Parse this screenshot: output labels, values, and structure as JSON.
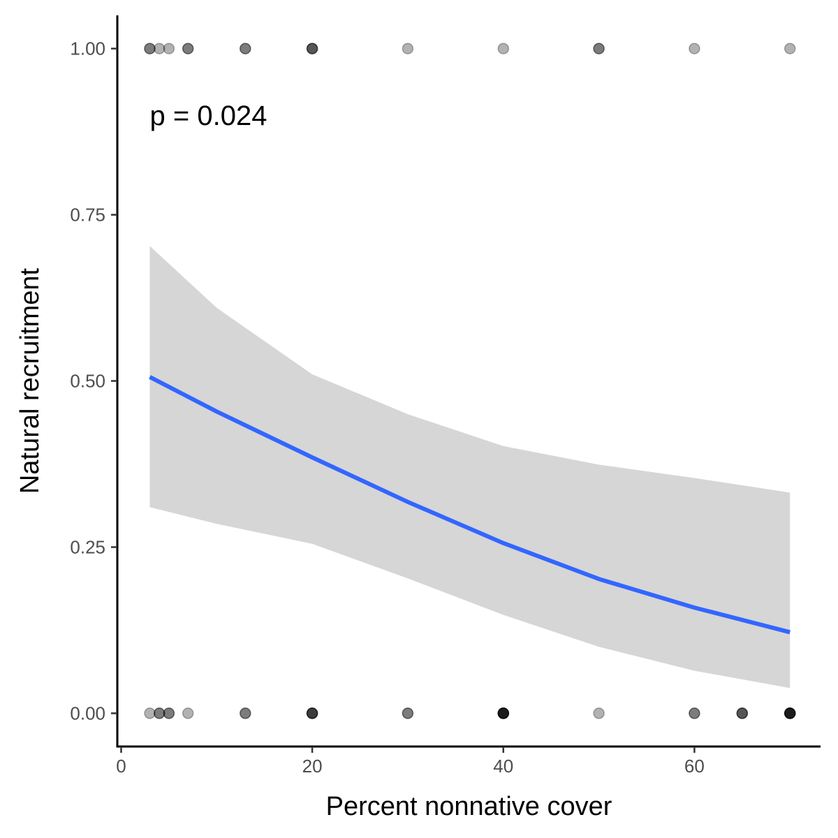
{
  "chart_data": {
    "type": "scatter",
    "xlabel": "Percent nonnative cover",
    "ylabel": "Natural recruitment",
    "xlim": [
      -0.4,
      73.2
    ],
    "ylim": [
      -0.05,
      1.05
    ],
    "xticks": [
      0,
      20,
      40,
      60
    ],
    "xtick_labels": [
      "0",
      "20",
      "40",
      "60"
    ],
    "yticks": [
      0,
      0.25,
      0.5,
      0.75,
      1
    ],
    "ytick_labels": [
      "0.00",
      "0.25",
      "0.50",
      "0.75",
      "1.00"
    ],
    "grid": false,
    "annotation": {
      "text": "p = 0.024",
      "x": 3,
      "y": 0.9
    },
    "point_color": "#000000",
    "point_alpha": 0.3,
    "points": [
      {
        "x": 3,
        "y": 1
      },
      {
        "x": 3,
        "y": 1
      },
      {
        "x": 4,
        "y": 1
      },
      {
        "x": 5,
        "y": 1
      },
      {
        "x": 7,
        "y": 1
      },
      {
        "x": 7,
        "y": 1
      },
      {
        "x": 13,
        "y": 1
      },
      {
        "x": 13,
        "y": 1
      },
      {
        "x": 20,
        "y": 1
      },
      {
        "x": 20,
        "y": 1
      },
      {
        "x": 20,
        "y": 1
      },
      {
        "x": 30,
        "y": 1
      },
      {
        "x": 40,
        "y": 1
      },
      {
        "x": 50,
        "y": 1
      },
      {
        "x": 50,
        "y": 1
      },
      {
        "x": 60,
        "y": 1
      },
      {
        "x": 70,
        "y": 1
      },
      {
        "x": 3,
        "y": 0
      },
      {
        "x": 4,
        "y": 0
      },
      {
        "x": 4,
        "y": 0
      },
      {
        "x": 5,
        "y": 0
      },
      {
        "x": 5,
        "y": 0
      },
      {
        "x": 7,
        "y": 0
      },
      {
        "x": 13,
        "y": 0
      },
      {
        "x": 13,
        "y": 0
      },
      {
        "x": 20,
        "y": 0
      },
      {
        "x": 20,
        "y": 0
      },
      {
        "x": 20,
        "y": 0
      },
      {
        "x": 20,
        "y": 0
      },
      {
        "x": 30,
        "y": 0
      },
      {
        "x": 30,
        "y": 0
      },
      {
        "x": 40,
        "y": 0
      },
      {
        "x": 40,
        "y": 0
      },
      {
        "x": 40,
        "y": 0
      },
      {
        "x": 40,
        "y": 0
      },
      {
        "x": 40,
        "y": 0
      },
      {
        "x": 40,
        "y": 0
      },
      {
        "x": 50,
        "y": 0
      },
      {
        "x": 60,
        "y": 0
      },
      {
        "x": 60,
        "y": 0
      },
      {
        "x": 65,
        "y": 0
      },
      {
        "x": 65,
        "y": 0
      },
      {
        "x": 65,
        "y": 0
      },
      {
        "x": 70,
        "y": 0
      },
      {
        "x": 70,
        "y": 0
      },
      {
        "x": 70,
        "y": 0
      },
      {
        "x": 70,
        "y": 0
      },
      {
        "x": 70,
        "y": 0
      },
      {
        "x": 70,
        "y": 0
      }
    ],
    "fit": {
      "color": "#3366ff",
      "ribbon_color": "#d6d6d6",
      "x": [
        3,
        10,
        20,
        30,
        40,
        50,
        60,
        70
      ],
      "y": [
        0.506,
        0.454,
        0.385,
        0.318,
        0.256,
        0.202,
        0.159,
        0.122
      ],
      "lower": [
        0.31,
        0.285,
        0.255,
        0.203,
        0.148,
        0.1,
        0.064,
        0.038
      ],
      "upper": [
        0.703,
        0.61,
        0.51,
        0.45,
        0.402,
        0.374,
        0.354,
        0.332
      ]
    }
  }
}
